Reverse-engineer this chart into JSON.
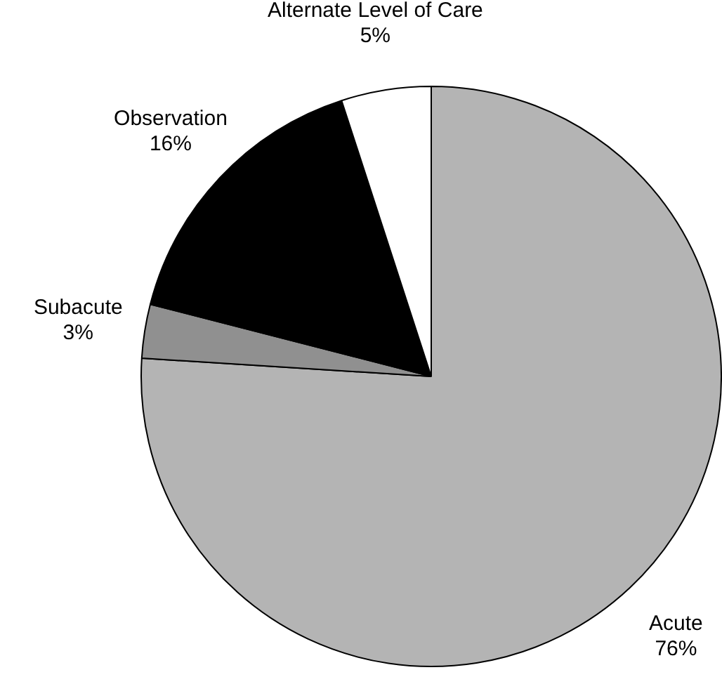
{
  "chart_data": {
    "type": "pie",
    "categories": [
      "Acute",
      "Subacute",
      "Observation",
      "Alternate Level of Care"
    ],
    "values": [
      76,
      3,
      16,
      5
    ],
    "colors": [
      "#b4b4b4",
      "#909090",
      "#000000",
      "#ffffff"
    ],
    "value_labels": [
      "76%",
      "3%",
      "16%",
      "5%"
    ],
    "legend": false
  }
}
